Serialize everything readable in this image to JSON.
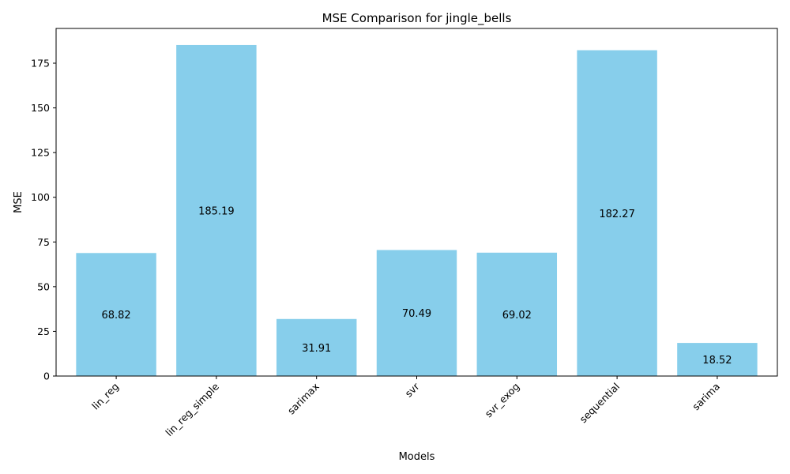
{
  "chart_data": {
    "type": "bar",
    "title": "MSE Comparison for jingle_bells",
    "xlabel": "Models",
    "ylabel": "MSE",
    "categories": [
      "lin_reg",
      "lin_reg_simple",
      "sarimax",
      "svr",
      "svr_exog",
      "sequential",
      "sarima"
    ],
    "values": [
      68.82,
      185.19,
      31.91,
      70.49,
      69.02,
      182.27,
      18.52
    ],
    "value_labels": [
      "68.82",
      "185.19",
      "31.91",
      "70.49",
      "69.02",
      "182.27",
      "18.52"
    ],
    "ylim": [
      0,
      194.45
    ],
    "yticks": [
      0,
      25,
      50,
      75,
      100,
      125,
      150,
      175
    ],
    "ytick_labels": [
      "0",
      "25",
      "50",
      "75",
      "100",
      "125",
      "150",
      "175"
    ],
    "bar_color": "#87ceeb",
    "grid": false,
    "xtick_rotation_deg": 45
  }
}
